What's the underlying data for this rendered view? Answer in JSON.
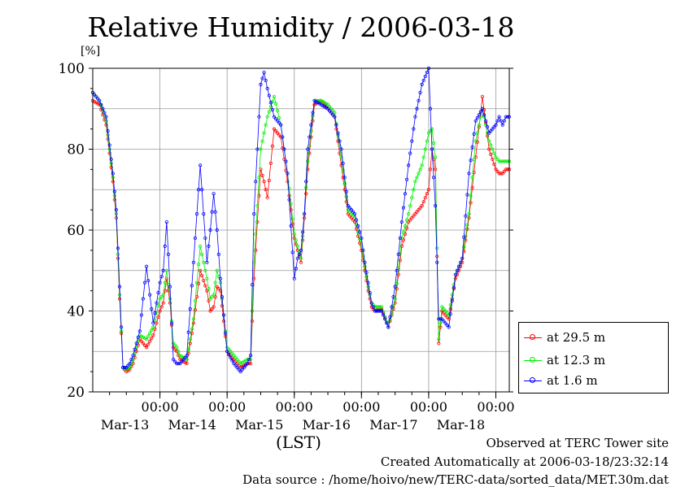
{
  "title": "Relative Humidity / 2006-03-18",
  "unit_label": "[%]",
  "xaxis_label": "(LST)",
  "footer": {
    "line1": "Observed at TERC Tower site",
    "line2": "Created Automatically at 2006-03-18/23:32:14",
    "line3": "Data source : /home/hoivo/new/TERC-data/sorted_data/MET.30m.dat"
  },
  "legend": [
    {
      "label": "at 29.5 m",
      "color": "#ff0000"
    },
    {
      "label": "at 12.3 m",
      "color": "#00ee00"
    },
    {
      "label": "at 1.6 m",
      "color": "#0000ff"
    }
  ],
  "chart_data": {
    "type": "line",
    "title": "Relative Humidity / 2006-03-18",
    "ylabel": "[%]",
    "xlabel": "(LST)",
    "ylim": [
      20,
      100
    ],
    "yticks": [
      20,
      40,
      60,
      80,
      100
    ],
    "xlim_days": [
      0,
      6.2
    ],
    "x_ticks": [
      {
        "day": 1,
        "time": "00:00",
        "date": "Mar-13"
      },
      {
        "day": 2,
        "time": "00:00",
        "date": "Mar-14"
      },
      {
        "day": 3,
        "time": "00:00",
        "date": "Mar-15"
      },
      {
        "day": 4,
        "time": "00:00",
        "date": "Mar-16"
      },
      {
        "day": 5,
        "time": "00:00",
        "date": "Mar-17"
      },
      {
        "day": 6,
        "time": "00:00",
        "date": "Mar-18"
      }
    ],
    "grid": true,
    "legend_position": "right",
    "series": [
      {
        "name": "at 29.5 m",
        "color": "#ff0000",
        "x": [
          0,
          0.1,
          0.2,
          0.3,
          0.35,
          0.4,
          0.45,
          0.5,
          0.55,
          0.6,
          0.7,
          0.8,
          0.9,
          1.0,
          1.05,
          1.1,
          1.15,
          1.2,
          1.25,
          1.3,
          1.4,
          1.5,
          1.6,
          1.7,
          1.75,
          1.8,
          1.85,
          1.9,
          2.0,
          2.1,
          2.2,
          2.3,
          2.35,
          2.4,
          2.45,
          2.5,
          2.55,
          2.6,
          2.7,
          2.8,
          2.9,
          3.0,
          3.05,
          3.1,
          3.15,
          3.2,
          3.3,
          3.4,
          3.5,
          3.6,
          3.7,
          3.8,
          3.9,
          4.0,
          4.05,
          4.1,
          4.15,
          4.2,
          4.3,
          4.4,
          4.5,
          4.6,
          4.7,
          4.8,
          4.9,
          5.0,
          5.05,
          5.1,
          5.15,
          5.2,
          5.3,
          5.4,
          5.5,
          5.6,
          5.7,
          5.8,
          5.9,
          6.0,
          6.05,
          6.1,
          6.15,
          6.2
        ],
        "y": [
          92,
          91,
          86,
          72,
          63,
          43,
          26,
          25,
          25.5,
          27,
          33,
          31,
          34,
          40,
          42,
          48,
          42,
          31,
          30,
          28,
          27,
          37,
          50,
          45,
          40,
          41,
          46,
          45,
          30,
          28,
          26,
          27,
          27,
          48,
          62,
          75,
          72,
          68,
          85,
          83,
          72,
          58,
          55,
          52,
          63,
          75,
          91,
          92,
          90,
          88,
          76,
          64,
          62,
          55,
          50,
          45,
          41,
          40,
          40.5,
          36,
          42,
          56,
          62,
          64,
          66,
          70,
          80,
          75,
          32,
          40,
          38,
          48,
          52,
          63,
          78,
          93,
          80,
          75,
          74,
          74,
          75,
          75
        ]
      },
      {
        "name": "at 12.3 m",
        "color": "#00ee00",
        "x": [
          0,
          0.1,
          0.2,
          0.3,
          0.35,
          0.4,
          0.45,
          0.5,
          0.55,
          0.6,
          0.7,
          0.8,
          0.9,
          1.0,
          1.05,
          1.1,
          1.15,
          1.2,
          1.25,
          1.3,
          1.4,
          1.5,
          1.6,
          1.7,
          1.75,
          1.8,
          1.85,
          1.9,
          2.0,
          2.1,
          2.2,
          2.3,
          2.35,
          2.4,
          2.45,
          2.5,
          2.55,
          2.6,
          2.7,
          2.8,
          2.9,
          3.0,
          3.05,
          3.1,
          3.15,
          3.2,
          3.3,
          3.4,
          3.5,
          3.6,
          3.7,
          3.8,
          3.9,
          4.0,
          4.05,
          4.1,
          4.15,
          4.2,
          4.3,
          4.4,
          4.5,
          4.6,
          4.7,
          4.8,
          4.9,
          5.0,
          5.05,
          5.1,
          5.15,
          5.2,
          5.3,
          5.4,
          5.5,
          5.6,
          5.7,
          5.8,
          5.9,
          6.0,
          6.05,
          6.1,
          6.15,
          6.2
        ],
        "y": [
          94,
          92,
          87,
          73,
          64,
          44,
          26,
          25.5,
          26,
          28,
          34,
          33,
          36,
          43,
          44,
          50,
          43,
          32,
          31,
          29,
          28,
          38,
          56,
          48,
          43,
          44,
          50,
          47,
          31,
          29,
          27,
          28,
          28,
          52,
          66,
          80,
          84,
          88,
          93,
          86,
          74,
          59,
          56,
          53,
          64,
          77,
          92,
          92,
          91,
          89,
          78,
          65,
          63,
          56,
          51,
          46,
          42,
          41,
          41,
          36,
          43,
          58,
          64,
          72,
          76,
          84,
          85,
          78,
          33,
          41,
          39,
          49,
          53,
          64,
          82,
          90,
          82,
          78,
          77,
          77,
          77,
          77
        ]
      },
      {
        "name": "at 1.6 m",
        "color": "#0000ff",
        "x": [
          0,
          0.1,
          0.2,
          0.3,
          0.35,
          0.4,
          0.45,
          0.5,
          0.55,
          0.6,
          0.7,
          0.8,
          0.9,
          1.0,
          1.05,
          1.1,
          1.15,
          1.2,
          1.25,
          1.3,
          1.4,
          1.5,
          1.6,
          1.7,
          1.75,
          1.8,
          1.85,
          1.9,
          2.0,
          2.1,
          2.2,
          2.3,
          2.35,
          2.4,
          2.45,
          2.5,
          2.55,
          2.6,
          2.7,
          2.8,
          2.9,
          3.0,
          3.05,
          3.1,
          3.15,
          3.2,
          3.3,
          3.4,
          3.5,
          3.6,
          3.7,
          3.8,
          3.9,
          4.0,
          4.05,
          4.1,
          4.15,
          4.2,
          4.3,
          4.4,
          4.5,
          4.6,
          4.7,
          4.8,
          4.9,
          5.0,
          5.05,
          5.1,
          5.15,
          5.2,
          5.3,
          5.4,
          5.5,
          5.6,
          5.7,
          5.8,
          5.9,
          6.0,
          6.05,
          6.1,
          6.15,
          6.2
        ],
        "y": [
          94,
          92,
          88,
          74,
          65,
          46,
          26,
          26,
          27,
          29,
          35,
          51,
          37,
          47,
          50,
          62,
          46,
          28,
          27,
          27,
          29,
          52,
          76,
          52,
          60,
          69,
          60,
          48,
          30,
          27,
          25,
          27,
          29,
          64,
          80,
          96,
          99,
          95,
          88,
          86,
          74,
          48,
          53,
          55,
          64,
          80,
          92,
          91,
          90,
          88,
          80,
          66,
          64,
          58,
          52,
          47,
          42,
          40,
          40,
          36,
          46,
          62,
          76,
          88,
          96,
          100,
          80,
          66,
          38,
          38,
          36,
          49,
          53,
          74,
          87,
          90,
          84,
          86,
          88,
          86,
          88,
          88
        ]
      }
    ]
  }
}
